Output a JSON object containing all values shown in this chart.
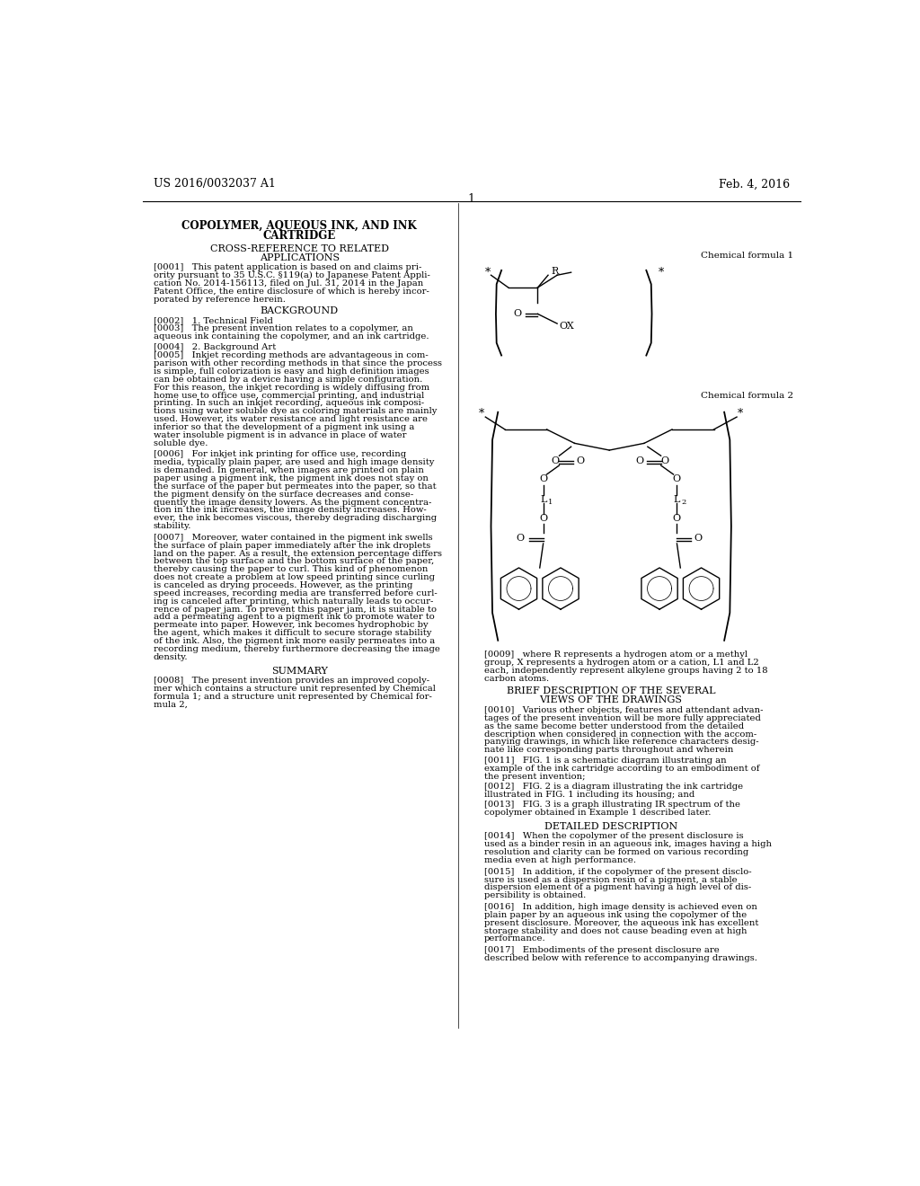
{
  "bg_color": "#ffffff",
  "header_left": "US 2016/0032037 A1",
  "header_right": "Feb. 4, 2016",
  "page_number": "1",
  "chem_formula1_label": "Chemical formula 1",
  "chem_formula2_label": "Chemical formula 2",
  "para0001": "[0001]   This patent application is based on and claims pri-\nority pursuant to 35 U.S.C. §119(a) to Japanese Patent Appli-\ncation No. 2014-156113, filed on Jul. 31, 2014 in the Japan\nPatent Office, the entire disclosure of which is hereby incor-\nporated by reference herein.",
  "para0002": "[0002]   1. Technical Field",
  "para0003": "[0003]   The present invention relates to a copolymer, an\naqueous ink containing the copolymer, and an ink cartridge.",
  "para0004": "[0004]   2. Background Art",
  "para0005": "[0005]   Inkjet recording methods are advantageous in com-\nparison with other recording methods in that since the process\nis simple, full colorization is easy and high definition images\ncan be obtained by a device having a simple configuration.\nFor this reason, the inkjet recording is widely diffusing from\nhome use to office use, commercial printing, and industrial\nprinting. In such an inkjet recording, aqueous ink composi-\ntions using water soluble dye as coloring materials are mainly\nused. However, its water resistance and light resistance are\ninferior so that the development of a pigment ink using a\nwater insoluble pigment is in advance in place of water\nsoluble dye.",
  "para0006": "[0006]   For inkjet ink printing for office use, recording\nmedia, typically plain paper, are used and high image density\nis demanded. In general, when images are printed on plain\npaper using a pigment ink, the pigment ink does not stay on\nthe surface of the paper but permeates into the paper, so that\nthe pigment density on the surface decreases and conse-\nquently the image density lowers. As the pigment concentra-\ntion in the ink increases, the image density increases. How-\never, the ink becomes viscous, thereby degrading discharging\nstability.",
  "para0007": "[0007]   Moreover, water contained in the pigment ink swells\nthe surface of plain paper immediately after the ink droplets\nland on the paper. As a result, the extension percentage differs\nbetween the top surface and the bottom surface of the paper,\nthereby causing the paper to curl. This kind of phenomenon\ndoes not create a problem at low speed printing since curling\nis canceled as drying proceeds. However, as the printing\nspeed increases, recording media are transferred before curl-\ning is canceled after printing, which naturally leads to occur-\nrence of paper jam. To prevent this paper jam, it is suitable to\nadd a permeating agent to a pigment ink to promote water to\npermeate into paper. However, ink becomes hydrophobic by\nthe agent, which makes it difficult to secure storage stability\nof the ink. Also, the pigment ink more easily permeates into a\nrecording medium, thereby furthermore decreasing the image\ndensity.",
  "para0008": "[0008]   The present invention provides an improved copoly-\nmer which contains a structure unit represented by Chemical\nformula 1; and a structure unit represented by Chemical for-\nmula 2,",
  "para0009": "[0009]   where R represents a hydrogen atom or a methyl\ngroup, X represents a hydrogen atom or a cation, L1 and L2\neach, independently represent alkylene groups having 2 to 18\ncarbon atoms.",
  "para0010": "[0010]   Various other objects, features and attendant advan-\ntages of the present invention will be more fully appreciated\nas the same become better understood from the detailed\ndescription when considered in connection with the accom-\npanying drawings, in which like reference characters desig-\nnate like corresponding parts throughout and wherein",
  "para0011": "[0011]   FIG. 1 is a schematic diagram illustrating an\nexample of the ink cartridge according to an embodiment of\nthe present invention;",
  "para0012": "[0012]   FIG. 2 is a diagram illustrating the ink cartridge\nillustrated in FIG. 1 including its housing; and",
  "para0013": "[0013]   FIG. 3 is a graph illustrating IR spectrum of the\ncopolymer obtained in Example 1 described later.",
  "para0014": "[0014]   When the copolymer of the present disclosure is\nused as a binder resin in an aqueous ink, images having a high\nresolution and clarity can be formed on various recording\nmedia even at high performance.",
  "para0015": "[0015]   In addition, if the copolymer of the present disclo-\nsure is used as a dispersion resin of a pigment, a stable\ndispersion element of a pigment having a high level of dis-\npersibility is obtained.",
  "para0016": "[0016]   In addition, high image density is achieved even on\nplain paper by an aqueous ink using the copolymer of the\npresent disclosure. Moreover, the aqueous ink has excellent\nstorage stability and does not cause beading even at high\nperformance.",
  "para0017": "[0017]   Embodiments of the present disclosure are\ndescribed below with reference to accompanying drawings."
}
